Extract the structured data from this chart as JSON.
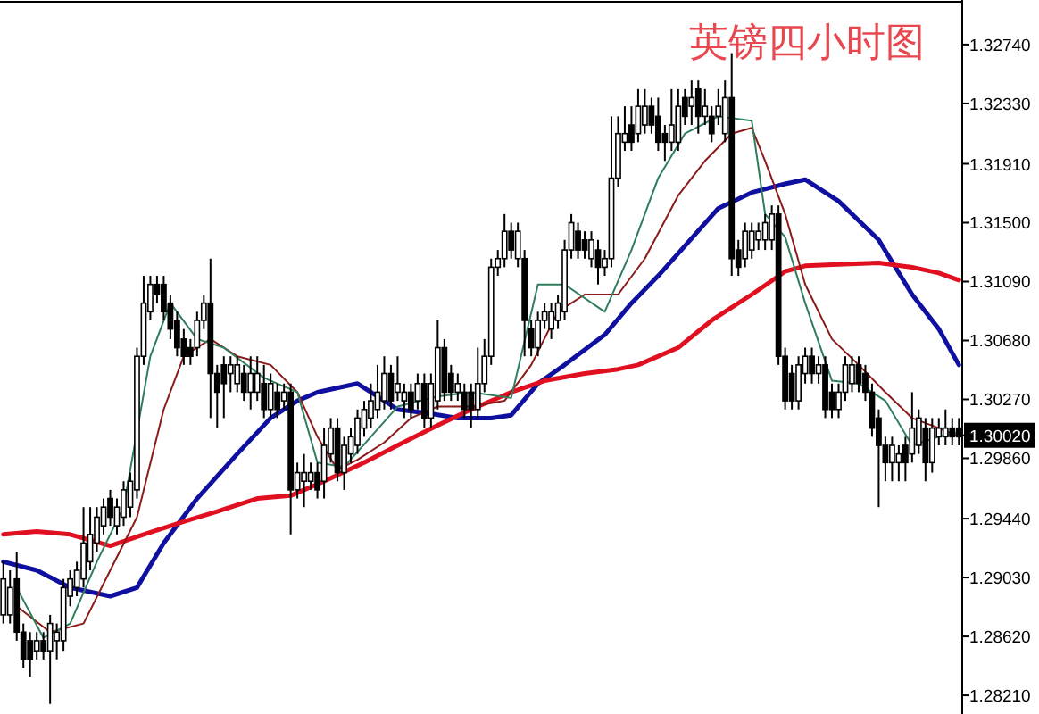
{
  "chart_data": {
    "type": "candlestick",
    "title": "英镑四小时图",
    "tick_labels": "y",
    "ylim": [
      1.2808,
      1.3305
    ],
    "yticks": [
      {
        "value": 1.3274,
        "label": "1.32740"
      },
      {
        "value": 1.3233,
        "label": "1.32330"
      },
      {
        "value": 1.3191,
        "label": "1.31910"
      },
      {
        "value": 1.315,
        "label": "1.31500"
      },
      {
        "value": 1.3109,
        "label": "1.31090"
      },
      {
        "value": 1.3068,
        "label": "1.30680"
      },
      {
        "value": 1.3027,
        "label": "1.30270"
      },
      {
        "value": 1.3002,
        "label": "1.30020"
      },
      {
        "value": 1.2986,
        "label": "1.29860"
      },
      {
        "value": 1.2944,
        "label": "1.29440"
      },
      {
        "value": 1.2903,
        "label": "1.29030"
      },
      {
        "value": 1.2862,
        "label": "1.28620"
      },
      {
        "value": 1.2821,
        "label": "1.28210"
      }
    ],
    "categories": [
      null,
      null,
      null,
      null,
      null,
      null,
      null,
      null,
      null,
      null,
      null,
      null,
      null,
      null,
      null,
      null,
      null,
      null,
      null,
      null,
      null,
      null,
      null,
      null,
      null,
      null,
      null,
      null,
      null,
      null,
      null,
      null,
      null,
      null,
      null,
      null,
      null,
      null,
      null,
      null,
      null,
      null,
      null,
      null,
      null,
      null,
      null,
      null,
      null,
      null,
      null,
      null,
      null,
      null,
      null,
      null,
      null,
      null,
      null,
      null,
      null,
      null,
      null,
      null,
      null,
      null,
      null,
      null,
      null,
      null,
      null,
      null,
      null,
      null,
      null,
      null,
      null,
      null,
      null,
      null,
      null,
      null,
      null,
      null,
      null,
      null,
      null,
      null,
      null,
      null,
      null,
      null,
      null,
      null,
      null,
      null,
      null,
      null,
      null,
      null,
      null,
      null,
      null,
      null,
      null,
      null,
      null,
      null,
      null,
      null,
      null,
      null,
      null,
      null,
      null,
      null,
      null,
      null,
      null,
      null,
      null,
      null,
      null,
      null,
      null,
      null,
      null,
      null,
      null,
      null,
      null,
      null,
      null,
      null,
      null,
      null,
      null,
      null,
      null,
      null,
      null,
      null,
      null,
      null
    ],
    "ohlc": [
      [
        1.2877,
        1.2914,
        1.2871,
        1.2902
      ],
      [
        1.2877,
        1.2908,
        1.2871,
        1.2896
      ],
      [
        1.2902,
        1.2921,
        1.2859,
        1.2865
      ],
      [
        1.2865,
        1.2871,
        1.284,
        1.2846
      ],
      [
        1.2859,
        1.2865,
        1.2834,
        1.2846
      ],
      [
        1.2852,
        1.2865,
        1.2846,
        1.2859
      ],
      [
        1.2859,
        1.2865,
        1.2846,
        1.2852
      ],
      [
        1.2852,
        1.2877,
        1.2815,
        1.2871
      ],
      [
        1.2859,
        1.2871,
        1.2846,
        1.2865
      ],
      [
        1.2859,
        1.2902,
        1.2852,
        1.2896
      ],
      [
        1.289,
        1.2908,
        1.2883,
        1.2902
      ],
      [
        1.2896,
        1.2914,
        1.289,
        1.2908
      ],
      [
        1.2902,
        1.2952,
        1.2896,
        1.2927
      ],
      [
        1.2914,
        1.2952,
        1.2908,
        1.2933
      ],
      [
        1.2927,
        1.2952,
        1.2921,
        1.2945
      ],
      [
        1.2939,
        1.2958,
        1.2933,
        1.2952
      ],
      [
        1.2958,
        1.2964,
        1.2939,
        1.2945
      ],
      [
        1.2939,
        1.2958,
        1.2933,
        1.2952
      ],
      [
        1.2945,
        1.297,
        1.2939,
        1.2964
      ],
      [
        1.2952,
        1.2976,
        1.2945,
        1.297
      ],
      [
        1.2964,
        1.3063,
        1.2958,
        1.3057
      ],
      [
        1.3057,
        1.3113,
        1.3051,
        1.3094
      ],
      [
        1.3088,
        1.3113,
        1.3082,
        1.3107
      ],
      [
        1.3107,
        1.3113,
        1.3094,
        1.31
      ],
      [
        1.3107,
        1.3113,
        1.3082,
        1.3088
      ],
      [
        1.3094,
        1.31,
        1.3069,
        1.3076
      ],
      [
        1.3082,
        1.3088,
        1.3057,
        1.3063
      ],
      [
        1.3069,
        1.3076,
        1.3051,
        1.3057
      ],
      [
        1.3063,
        1.3069,
        1.3051,
        1.3057
      ],
      [
        1.3063,
        1.3088,
        1.3057,
        1.3082
      ],
      [
        1.3082,
        1.31,
        1.3076,
        1.3094
      ],
      [
        1.3094,
        1.3125,
        1.3014,
        1.3045
      ],
      [
        1.3045,
        1.3051,
        1.3007,
        1.3032
      ],
      [
        1.3051,
        1.3057,
        1.3014,
        1.3038
      ],
      [
        1.3045,
        1.3057,
        1.3032,
        1.3051
      ],
      [
        1.3038,
        1.3057,
        1.3032,
        1.3051
      ],
      [
        1.3045,
        1.3051,
        1.3026,
        1.3032
      ],
      [
        1.3032,
        1.3057,
        1.302,
        1.3045
      ],
      [
        1.3032,
        1.3057,
        1.3026,
        1.3045
      ],
      [
        1.3038,
        1.3051,
        1.3014,
        1.302
      ],
      [
        1.302,
        1.3045,
        1.3014,
        1.3038
      ],
      [
        1.3032,
        1.3038,
        1.3014,
        1.302
      ],
      [
        1.3026,
        1.3038,
        1.302,
        1.3032
      ],
      [
        1.3032,
        1.3038,
        1.2933,
        1.2964
      ],
      [
        1.2964,
        1.2983,
        1.2958,
        1.2976
      ],
      [
        1.297,
        1.2989,
        1.2952,
        1.2976
      ],
      [
        1.297,
        1.2983,
        1.2964,
        1.2976
      ],
      [
        1.2976,
        1.2983,
        1.2958,
        1.2964
      ],
      [
        1.297,
        1.3007,
        1.2958,
        1.2995
      ],
      [
        1.2989,
        1.3014,
        1.2983,
        1.3007
      ],
      [
        1.3007,
        1.3014,
        1.297,
        1.2976
      ],
      [
        1.2976,
        1.3001,
        1.2964,
        1.2995
      ],
      [
        1.2989,
        1.3007,
        1.2983,
        1.3001
      ],
      [
        1.2995,
        1.302,
        1.2989,
        1.3014
      ],
      [
        1.3007,
        1.3026,
        1.3001,
        1.302
      ],
      [
        1.3014,
        1.3038,
        1.3007,
        1.3026
      ],
      [
        1.302,
        1.3051,
        1.3014,
        1.3032
      ],
      [
        1.3026,
        1.3057,
        1.302,
        1.3045
      ],
      [
        1.3045,
        1.3051,
        1.302,
        1.3026
      ],
      [
        1.3032,
        1.3057,
        1.3026,
        1.3038
      ],
      [
        1.3026,
        1.3038,
        1.3014,
        1.3032
      ],
      [
        1.3032,
        1.3038,
        1.3014,
        1.302
      ],
      [
        1.3026,
        1.3045,
        1.302,
        1.3038
      ],
      [
        1.3038,
        1.3045,
        1.3007,
        1.3014
      ],
      [
        1.3014,
        1.3045,
        1.3007,
        1.3038
      ],
      [
        1.3026,
        1.3082,
        1.302,
        1.3063
      ],
      [
        1.3063,
        1.3069,
        1.3026,
        1.3032
      ],
      [
        1.3045,
        1.3051,
        1.3026,
        1.3032
      ],
      [
        1.3032,
        1.3045,
        1.3026,
        1.3038
      ],
      [
        1.3032,
        1.3038,
        1.3014,
        1.302
      ],
      [
        1.3032,
        1.3038,
        1.3007,
        1.302
      ],
      [
        1.302,
        1.3063,
        1.3014,
        1.3038
      ],
      [
        1.3038,
        1.3069,
        1.3032,
        1.3057
      ],
      [
        1.3057,
        1.3125,
        1.3051,
        1.3119
      ],
      [
        1.3119,
        1.3131,
        1.3113,
        1.3125
      ],
      [
        1.3125,
        1.3156,
        1.3119,
        1.3144
      ],
      [
        1.3144,
        1.315,
        1.3125,
        1.3131
      ],
      [
        1.3125,
        1.315,
        1.3119,
        1.3144
      ],
      [
        1.3125,
        1.3131,
        1.3057,
        1.3082
      ],
      [
        1.3076,
        1.3082,
        1.3057,
        1.3063
      ],
      [
        1.3063,
        1.3088,
        1.3057,
        1.3082
      ],
      [
        1.3082,
        1.3094,
        1.3076,
        1.3088
      ],
      [
        1.3076,
        1.3094,
        1.3069,
        1.3088
      ],
      [
        1.3082,
        1.31,
        1.3076,
        1.3094
      ],
      [
        1.3088,
        1.3138,
        1.3082,
        1.3131
      ],
      [
        1.3131,
        1.3156,
        1.3125,
        1.315
      ],
      [
        1.3144,
        1.315,
        1.3125,
        1.3131
      ],
      [
        1.3138,
        1.3144,
        1.3125,
        1.3131
      ],
      [
        1.3125,
        1.3144,
        1.3119,
        1.3138
      ],
      [
        1.3131,
        1.3138,
        1.3107,
        1.3119
      ],
      [
        1.3119,
        1.3131,
        1.3113,
        1.3125
      ],
      [
        1.3125,
        1.3224,
        1.3119,
        1.3181
      ],
      [
        1.3181,
        1.3224,
        1.3175,
        1.3212
      ],
      [
        1.3206,
        1.3231,
        1.32,
        1.3212
      ],
      [
        1.3218,
        1.3231,
        1.32,
        1.3206
      ],
      [
        1.3212,
        1.3243,
        1.3206,
        1.3231
      ],
      [
        1.3218,
        1.3243,
        1.3212,
        1.3231
      ],
      [
        1.3231,
        1.3237,
        1.3212,
        1.3218
      ],
      [
        1.3224,
        1.3237,
        1.32,
        1.3206
      ],
      [
        1.3212,
        1.3218,
        1.3193,
        1.3206
      ],
      [
        1.3206,
        1.3243,
        1.32,
        1.3218
      ],
      [
        1.3206,
        1.3243,
        1.32,
        1.3231
      ],
      [
        1.3237,
        1.3243,
        1.3218,
        1.3224
      ],
      [
        1.3231,
        1.3249,
        1.3218,
        1.3237
      ],
      [
        1.3243,
        1.3249,
        1.3212,
        1.3224
      ],
      [
        1.3224,
        1.3243,
        1.3218,
        1.3231
      ],
      [
        1.3224,
        1.3231,
        1.3206,
        1.3212
      ],
      [
        1.3224,
        1.3243,
        1.3218,
        1.3231
      ],
      [
        1.3212,
        1.3249,
        1.3206,
        1.3237
      ],
      [
        1.3237,
        1.3268,
        1.3113,
        1.3125
      ],
      [
        1.3131,
        1.3138,
        1.3113,
        1.3119
      ],
      [
        1.3125,
        1.315,
        1.3119,
        1.3144
      ],
      [
        1.3131,
        1.315,
        1.3125,
        1.3144
      ],
      [
        1.3138,
        1.315,
        1.3131,
        1.3144
      ],
      [
        1.3138,
        1.3156,
        1.3131,
        1.315
      ],
      [
        1.3138,
        1.3162,
        1.3131,
        1.3156
      ],
      [
        1.3156,
        1.3162,
        1.3051,
        1.3057
      ],
      [
        1.3057,
        1.3063,
        1.302,
        1.3026
      ],
      [
        1.3045,
        1.3051,
        1.302,
        1.3026
      ],
      [
        1.3026,
        1.3057,
        1.302,
        1.3051
      ],
      [
        1.3045,
        1.3063,
        1.3038,
        1.3057
      ],
      [
        1.3057,
        1.3063,
        1.3038,
        1.3045
      ],
      [
        1.3045,
        1.3057,
        1.3038,
        1.3051
      ],
      [
        1.3051,
        1.3057,
        1.3014,
        1.302
      ],
      [
        1.3032,
        1.3038,
        1.3014,
        1.302
      ],
      [
        1.302,
        1.3038,
        1.3014,
        1.3032
      ],
      [
        1.3032,
        1.3057,
        1.3026,
        1.3051
      ],
      [
        1.3038,
        1.3057,
        1.3032,
        1.3051
      ],
      [
        1.3051,
        1.3057,
        1.3032,
        1.3038
      ],
      [
        1.3045,
        1.3051,
        1.3026,
        1.3032
      ],
      [
        1.3032,
        1.3038,
        1.3001,
        1.3007
      ],
      [
        1.3014,
        1.302,
        1.2952,
        1.2995
      ],
      [
        1.2995,
        1.3001,
        1.297,
        1.2983
      ],
      [
        1.2983,
        1.3001,
        1.297,
        1.2995
      ],
      [
        1.2983,
        1.2995,
        1.297,
        1.2989
      ],
      [
        1.2995,
        1.3001,
        1.297,
        1.2983
      ],
      [
        1.2989,
        1.3032,
        1.2983,
        1.3007
      ],
      [
        1.2995,
        1.302,
        1.2989,
        1.3014
      ],
      [
        1.3007,
        1.3014,
        1.297,
        1.2983
      ],
      [
        1.2983,
        1.3014,
        1.2976,
        1.3007
      ],
      [
        1.3001,
        1.3014,
        1.2995,
        1.3007
      ],
      [
        1.3001,
        1.302,
        1.2995,
        1.3007
      ],
      [
        1.3007,
        1.3014,
        1.2995,
        1.3001
      ],
      [
        1.3007,
        1.3014,
        1.2995,
        1.3001
      ]
    ],
    "series": [
      {
        "type": "line",
        "color": "#1010a0",
        "values": [
          1.2914,
          null,
          null,
          null,
          null,
          1.2908,
          null,
          null,
          null,
          null,
          1.2896,
          null,
          null,
          null,
          null,
          null,
          1.289,
          null,
          null,
          null,
          1.2896,
          null,
          null,
          null,
          1.2927,
          null,
          null,
          null,
          null,
          1.2958,
          null,
          null,
          null,
          null,
          null,
          1.2989,
          null,
          null,
          null,
          null,
          1.3014,
          null,
          null,
          null,
          1.3026,
          null,
          null,
          1.3032,
          null,
          null,
          null,
          null,
          null,
          1.3038,
          null,
          1.3032,
          null,
          null,
          null,
          1.302,
          null,
          null,
          null,
          null,
          1.3017,
          null,
          null,
          null,
          1.3014,
          null,
          null,
          null,
          null,
          1.3014,
          null,
          null,
          1.3016,
          null,
          null,
          null,
          1.3038,
          null,
          null,
          null,
          1.3051,
          null,
          null,
          null,
          null,
          null,
          1.3072,
          null,
          null,
          null,
          1.3094,
          null,
          null,
          null,
          1.3113,
          null,
          null,
          null,
          null,
          null,
          null,
          null,
          null,
          1.316,
          null,
          null,
          null,
          null,
          1.3171,
          null,
          null,
          null,
          null,
          1.3177,
          null,
          null,
          1.318,
          null,
          null,
          null,
          null,
          1.3165,
          null,
          null,
          null,
          null,
          null,
          1.3138,
          null,
          null,
          null,
          null,
          1.31,
          null,
          null,
          null,
          1.3076,
          null,
          null,
          1.3051
        ]
      },
      {
        "type": "line",
        "color": "#e01020",
        "values": [
          1.2933,
          null,
          null,
          null,
          null,
          1.2935,
          null,
          null,
          null,
          null,
          1.2933,
          null,
          null,
          null,
          null,
          null,
          1.2925,
          null,
          null,
          null,
          null,
          1.2933,
          null,
          null,
          null,
          null,
          null,
          1.2942,
          null,
          null,
          null,
          null,
          1.2949,
          null,
          null,
          null,
          null,
          null,
          1.2958,
          null,
          null,
          null,
          null,
          1.296,
          null,
          null,
          null,
          null,
          1.297,
          null,
          null,
          null,
          null,
          null,
          1.2983,
          null,
          null,
          null,
          null,
          1.2995,
          null,
          null,
          null,
          null,
          null,
          1.3009,
          null,
          null,
          null,
          null,
          1.302,
          null,
          null,
          null,
          null,
          null,
          1.3032,
          null,
          null,
          null,
          null,
          1.304,
          null,
          null,
          null,
          null,
          null,
          1.3045,
          null,
          null,
          null,
          null,
          1.3048,
          null,
          null,
          1.3051,
          null,
          null,
          null,
          null,
          null,
          1.3063,
          null,
          null,
          null,
          null,
          1.3082,
          null,
          null,
          null,
          null,
          null,
          1.31,
          null,
          null,
          null,
          null,
          1.3116,
          null,
          null,
          1.312,
          null,
          null,
          null,
          null,
          1.3121,
          null,
          null,
          null,
          null,
          null,
          1.3122,
          null,
          null,
          null,
          null,
          1.3119,
          null,
          null,
          null,
          1.3115,
          null,
          null,
          1.311
        ]
      },
      {
        "type": "line",
        "color": "#8b1a1a",
        "values": [
          null,
          null,
          1.2883,
          null,
          null,
          null,
          null,
          1.2865,
          null,
          null,
          null,
          null,
          1.2871,
          null,
          null,
          null,
          1.2908,
          null,
          null,
          null,
          1.2945,
          null,
          null,
          null,
          1.302,
          null,
          null,
          1.3057,
          null,
          null,
          null,
          1.3069,
          null,
          null,
          null,
          1.3057,
          null,
          null,
          null,
          null,
          1.3051,
          null,
          null,
          null,
          1.3032,
          null,
          null,
          1.3001,
          null,
          null,
          1.2978,
          null,
          null,
          1.2985,
          null,
          null,
          null,
          1.2997,
          null,
          null,
          null,
          1.3014,
          null,
          null,
          null,
          1.3022,
          null,
          null,
          null,
          null,
          1.3022,
          null,
          null,
          null,
          null,
          1.3026,
          null,
          null,
          null,
          1.3051,
          null,
          null,
          null,
          1.3088,
          null,
          null,
          null,
          1.31,
          null,
          null,
          null,
          null,
          1.31,
          null,
          null,
          null,
          1.3125,
          null,
          null,
          null,
          null,
          1.3169,
          null,
          null,
          null,
          1.3193,
          null,
          null,
          null,
          1.3212,
          null,
          null,
          1.3216,
          null,
          1.3193,
          null,
          null,
          1.3156,
          null,
          null,
          1.3107,
          null,
          null,
          null,
          1.3069,
          null,
          null,
          null,
          1.3051,
          null,
          null,
          null,
          1.3032,
          null,
          null,
          null,
          1.3014,
          null,
          null,
          null,
          1.3007,
          null,
          null,
          1.3001
        ]
      },
      {
        "type": "line",
        "color": "#2e7d5b",
        "values": [
          null,
          null,
          1.2896,
          null,
          null,
          null,
          1.2861,
          null,
          null,
          null,
          1.2871,
          null,
          null,
          null,
          1.2914,
          null,
          null,
          null,
          1.2952,
          null,
          null,
          null,
          1.3057,
          null,
          null,
          1.3094,
          null,
          null,
          null,
          1.3069,
          null,
          null,
          null,
          1.3063,
          null,
          null,
          null,
          null,
          null,
          1.3042,
          null,
          null,
          null,
          null,
          1.3032,
          null,
          null,
          1.2983,
          null,
          null,
          null,
          1.298,
          null,
          null,
          null,
          1.3001,
          null,
          null,
          null,
          1.3022,
          null,
          null,
          null,
          null,
          null,
          1.3029,
          null,
          null,
          null,
          null,
          1.3032,
          null,
          null,
          null,
          null,
          null,
          1.3028,
          null,
          null,
          null,
          1.3107,
          null,
          null,
          null,
          1.3107,
          null,
          null,
          null,
          null,
          null,
          1.3088,
          null,
          null,
          null,
          1.3131,
          null,
          null,
          null,
          1.3181,
          null,
          null,
          null,
          1.3212,
          null,
          null,
          null,
          null,
          1.3224,
          null,
          null,
          null,
          null,
          1.3221,
          null,
          1.3156,
          null,
          null,
          1.314,
          null,
          null,
          1.3094,
          null,
          null,
          null,
          1.304,
          null,
          null,
          null,
          1.3038,
          null,
          null,
          null,
          1.3026,
          null,
          null,
          null,
          1.2995,
          null,
          null,
          null,
          1.3001,
          null,
          null,
          1.3004
        ]
      }
    ]
  }
}
